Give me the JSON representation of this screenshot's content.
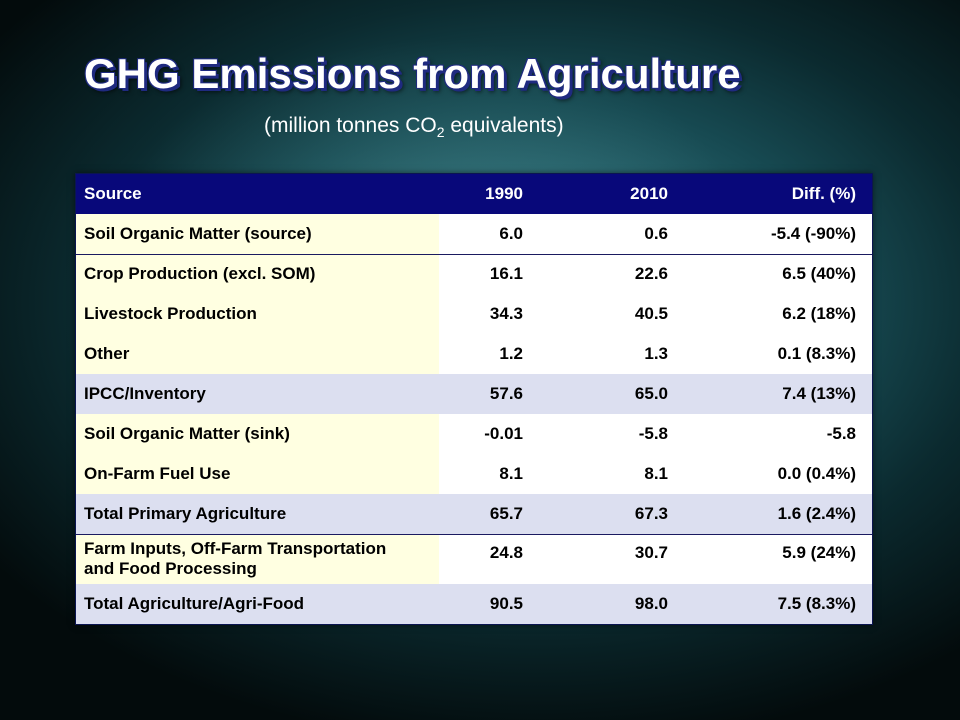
{
  "slide": {
    "title": "GHG Emissions from Agriculture",
    "subtitle_pre": "(million tonnes CO",
    "subtitle_sub": "2",
    "subtitle_post": " equivalents)"
  },
  "table": {
    "headers": [
      "Source",
      "1990",
      "2010",
      "Diff. (%)"
    ],
    "rows": [
      {
        "source": "Soil Organic Matter (source)",
        "y1990": "6.0",
        "y2010": "0.6",
        "diff": "-5.4 (-90%)"
      },
      {
        "source": "Crop Production (excl. SOM)",
        "y1990": "16.1",
        "y2010": "22.6",
        "diff": "6.5 (40%)"
      },
      {
        "source": "Livestock Production",
        "y1990": "34.3",
        "y2010": "40.5",
        "diff": "6.2 (18%)"
      },
      {
        "source": "Other",
        "y1990": "1.2",
        "y2010": "1.3",
        "diff": "0.1 (8.3%)"
      },
      {
        "source": "IPCC/Inventory",
        "y1990": "57.6",
        "y2010": "65.0",
        "diff": "7.4 (13%)"
      },
      {
        "source": "Soil Organic Matter (sink)",
        "y1990": "-0.01",
        "y2010": "-5.8",
        "diff": "-5.8"
      },
      {
        "source": "On-Farm Fuel Use",
        "y1990": "8.1",
        "y2010": "8.1",
        "diff": "0.0 (0.4%)"
      },
      {
        "source": "Total Primary Agriculture",
        "y1990": "65.7",
        "y2010": "67.3",
        "diff": "1.6 (2.4%)"
      },
      {
        "source_line1": "Farm Inputs, Off-Farm Transportation",
        "source_line2": "and Food Processing",
        "y1990": "24.8",
        "y2010": "30.7",
        "diff": "5.9 (24%)"
      },
      {
        "source": "Total Agriculture/Agri-Food",
        "y1990": "90.5",
        "y2010": "98.0",
        "diff": "7.5 (8.3%)"
      }
    ]
  },
  "colors": {
    "header_bg": "#08087a",
    "source_cell_bg": "#ffffe1",
    "subtotal_bg": "#dcdff0",
    "title_shadow": "#1f2a80"
  }
}
